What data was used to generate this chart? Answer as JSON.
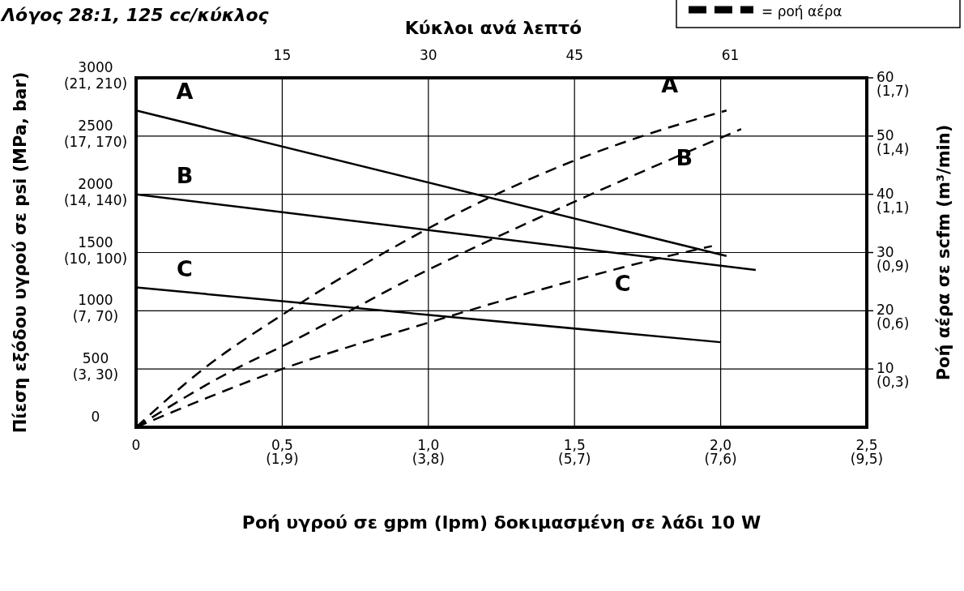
{
  "chart_data": {
    "type": "line",
    "title": "Λόγος 28:1, 125 cc/κύκλος",
    "xlabel": "Ροή υγρού σε gpm (lpm) δοκιμασμένη σε λάδι 10 W",
    "x2label": "Κύκλοι ανά λεπτό",
    "ylabel": "Πίεση εξόδου υγρού σε psi (MPa, bar)",
    "y2label": "Ροή αέρα σε scfm (m³/min)",
    "annotations": [
      "= ροή αέρα",
      "(1,9)",
      "(3,8)",
      "(5,7)",
      "(7,6)",
      "(9,5)",
      "(3, 30)",
      "(7, 70)",
      "(10, 100)",
      "(14, 140)",
      "(17, 170)",
      "(21, 210)"
    ],
    "xlim": [
      0,
      2.5
    ],
    "xticks": [
      0,
      {
        "value": 0.5,
        "label": "0,5"
      },
      {
        "value": 1,
        "label": "1,0"
      },
      {
        "value": 1.5,
        "label": "1,5"
      },
      {
        "value": 2,
        "label": "2,0"
      },
      {
        "value": 2.5,
        "label": "2,5"
      }
    ],
    "x2lim": [
      0,
      75
    ],
    "x2ticks": [
      15,
      30,
      45,
      61
    ],
    "ylim": [
      0,
      3000
    ],
    "yticks": [
      0,
      500,
      1000,
      1500,
      2000,
      2500,
      3000
    ],
    "y2lim": [
      0,
      60
    ],
    "y2ticks": [
      10,
      20,
      30,
      40,
      50,
      60
    ],
    "y3lim": [
      0,
      1.7
    ],
    "y3ticks": [
      {
        "value": 0.283,
        "label": "(0,3)"
      },
      {
        "value": 0.567,
        "label": "(0,6)"
      },
      {
        "value": 0.85,
        "label": "(0,9)"
      },
      {
        "value": 1.133,
        "label": "(1,1)"
      },
      {
        "value": 1.417,
        "label": "(1,4)"
      },
      {
        "value": 1.7,
        "label": "(1,7)"
      }
    ],
    "grid": true,
    "marker": "none",
    "series": [
      {
        "name": "A",
        "color": "#000000",
        "line_style": "solid",
        "x": [
          0,
          2.02
        ],
        "values": [
          2720,
          1470
        ]
      },
      {
        "name": "B",
        "color": "#000000",
        "line_style": "solid",
        "x": [
          0,
          2.12
        ],
        "values": [
          2000,
          1350
        ]
      },
      {
        "name": "C",
        "color": "#000000",
        "line_style": "solid",
        "x": [
          0,
          2.0
        ],
        "values": [
          1200,
          730
        ]
      },
      {
        "name": "A",
        "color": "#000000",
        "line_style": "dashed",
        "axis": "y2",
        "x": [
          0,
          0.23,
          0.5,
          0.85,
          1.22,
          1.49,
          1.72,
          2.02
        ],
        "values": [
          0,
          10,
          19.3,
          30,
          39.7,
          45.6,
          49.8,
          54.4
        ]
      },
      {
        "name": "B",
        "color": "#000000",
        "line_style": "dashed",
        "axis": "y2",
        "x": [
          0,
          0.34,
          0.5,
          0.99,
          1.49,
          1.81,
          2.07
        ],
        "values": [
          0,
          10,
          13.9,
          26.8,
          38.5,
          45.6,
          51.2
        ]
      },
      {
        "name": "C",
        "color": "#000000",
        "line_style": "dashed",
        "axis": "y2",
        "x": [
          0,
          0.5,
          0.99,
          1.49,
          1.78,
          1.97
        ],
        "values": [
          0,
          10,
          17.8,
          25.1,
          28.9,
          31.1
        ]
      }
    ]
  }
}
